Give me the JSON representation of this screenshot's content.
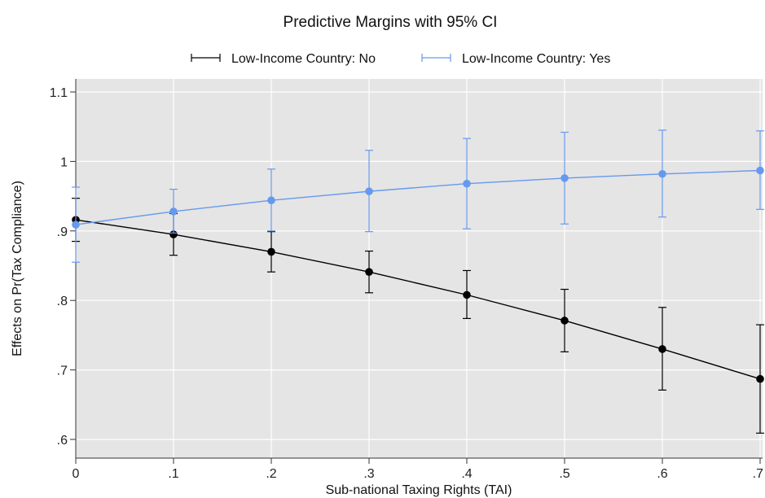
{
  "chart_data": {
    "type": "line",
    "title": "Predictive Margins with 95% CI",
    "xlabel": "Sub-national Taxing Rights (TAI)",
    "ylabel": "Effects on Pr(Tax Compliance)",
    "x": [
      0,
      0.1,
      0.2,
      0.3,
      0.4,
      0.5,
      0.6,
      0.7
    ],
    "xtick_labels": [
      "0",
      ".1",
      ".2",
      ".3",
      ".4",
      ".5",
      ".6",
      ".7"
    ],
    "yticks": [
      0.6,
      0.7,
      0.8,
      0.9,
      1.0,
      1.1
    ],
    "ytick_labels": [
      ".6",
      ".7",
      ".8",
      ".9",
      "1",
      "1.1"
    ],
    "xlim": [
      0,
      0.7
    ],
    "ylim": [
      0.6,
      1.1
    ],
    "grid": true,
    "legend_position": "top",
    "series": [
      {
        "name": "Low-Income Country: No",
        "color": "#000000",
        "values": [
          0.916,
          0.895,
          0.87,
          0.841,
          0.808,
          0.771,
          0.73,
          0.687
        ],
        "ci_low": [
          0.885,
          0.865,
          0.841,
          0.811,
          0.774,
          0.726,
          0.671,
          0.609
        ],
        "ci_high": [
          0.947,
          0.925,
          0.899,
          0.871,
          0.843,
          0.816,
          0.79,
          0.765
        ]
      },
      {
        "name": "Low-Income Country: Yes",
        "color": "#6699ee",
        "values": [
          0.909,
          0.928,
          0.944,
          0.957,
          0.968,
          0.976,
          0.982,
          0.987
        ],
        "ci_low": [
          0.855,
          0.897,
          0.9,
          0.899,
          0.903,
          0.91,
          0.92,
          0.931
        ],
        "ci_high": [
          0.963,
          0.96,
          0.989,
          1.016,
          1.033,
          1.042,
          1.045,
          1.044
        ]
      }
    ]
  }
}
